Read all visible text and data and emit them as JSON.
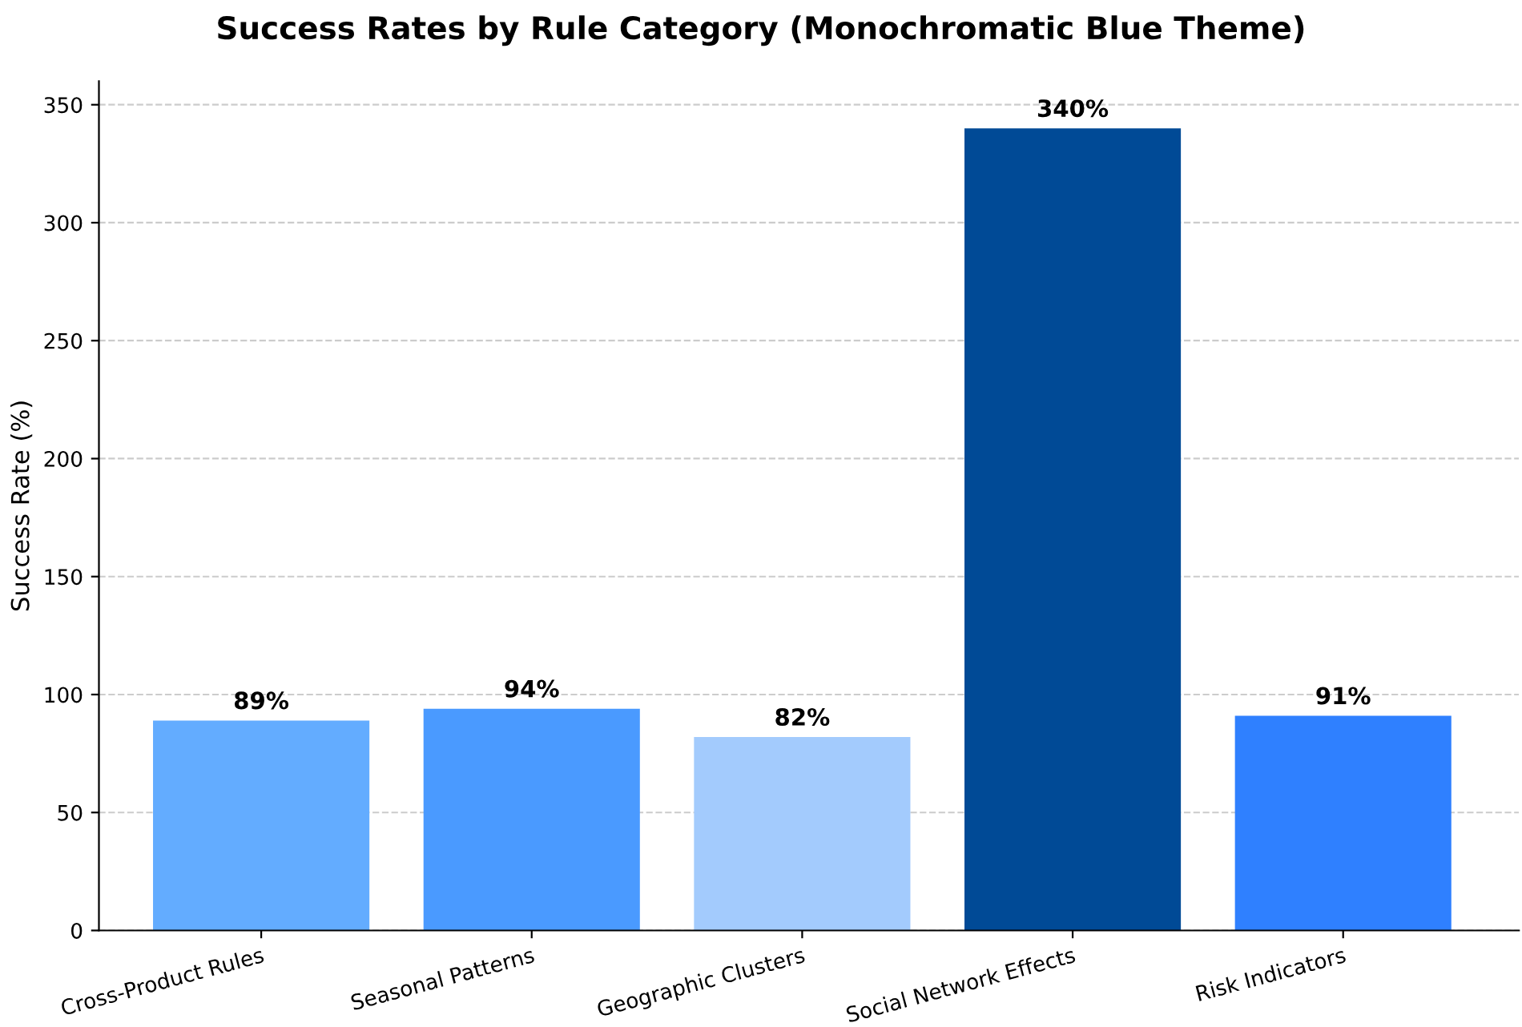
{
  "chart_data": {
    "type": "bar",
    "title": "Success Rates by Rule Category (Monochromatic Blue Theme)",
    "ylabel": "Success Rate (%)",
    "categories": [
      "Cross-Product Rules",
      "Seasonal Patterns",
      "Geographic Clusters",
      "Social Network Effects",
      "Risk Indicators"
    ],
    "values": [
      89,
      94,
      82,
      340,
      91
    ],
    "colors": [
      "#63acff",
      "#4a9aff",
      "#a3cbfd",
      "#004a96",
      "#2f80ff"
    ],
    "value_labels": [
      "89%",
      "94%",
      "82%",
      "340%",
      "91%"
    ],
    "ylim": [
      0,
      360
    ],
    "yticks": [
      0,
      50,
      100,
      150,
      200,
      250,
      300,
      350
    ],
    "grid": "y"
  }
}
